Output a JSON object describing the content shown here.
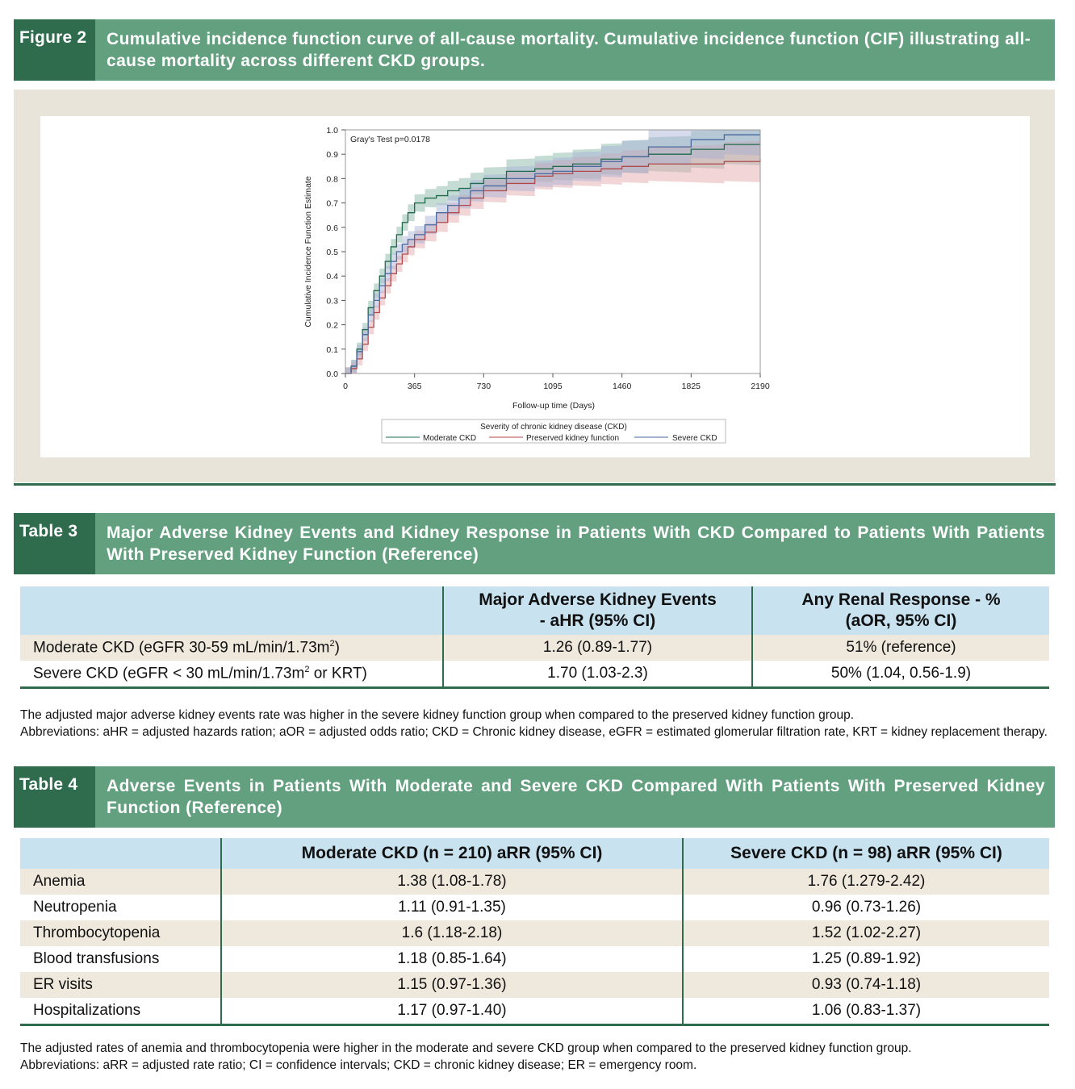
{
  "figure2": {
    "tag": "Figure 2",
    "caption": "Cumulative incidence function curve of all-cause mortality. Cumulative incidence function (CIF) illustrating all-cause mortality across different CKD groups."
  },
  "chart_data": {
    "type": "line",
    "annotation": "Gray's Test p=0.0178",
    "xlabel": "Follow-up time (Days)",
    "ylabel": "Cumulative Incidence Function Estimate",
    "xlim": [
      0,
      2190
    ],
    "ylim": [
      0,
      1.0
    ],
    "xticks": [
      0,
      365,
      730,
      1095,
      1460,
      1825,
      2190
    ],
    "yticks": [
      0.0,
      0.1,
      0.2,
      0.3,
      0.4,
      0.5,
      0.6,
      0.7,
      0.8,
      0.9,
      1.0
    ],
    "grid": false,
    "legend_title": "Severity of chronic kidney disease (CKD)",
    "legend_placement": "bottom",
    "series": [
      {
        "name": "Moderate CKD",
        "color": "#1f6b4a",
        "band_color": "#7fb2a2",
        "x": [
          0,
          30,
          60,
          90,
          120,
          150,
          180,
          210,
          240,
          270,
          300,
          330,
          365,
          420,
          480,
          540,
          600,
          660,
          730,
          850,
          1000,
          1095,
          1200,
          1350,
          1460,
          1600,
          1825,
          2000,
          2190
        ],
        "y": [
          0,
          0.03,
          0.1,
          0.18,
          0.27,
          0.34,
          0.4,
          0.46,
          0.52,
          0.57,
          0.62,
          0.66,
          0.7,
          0.72,
          0.73,
          0.75,
          0.76,
          0.78,
          0.8,
          0.83,
          0.84,
          0.85,
          0.86,
          0.88,
          0.89,
          0.9,
          0.92,
          0.94,
          0.94
        ]
      },
      {
        "name": "Preserved kidney function",
        "color": "#b04a4a",
        "band_color": "#e2a2a6",
        "x": [
          0,
          30,
          60,
          90,
          120,
          150,
          180,
          210,
          240,
          270,
          300,
          330,
          365,
          420,
          480,
          540,
          600,
          660,
          730,
          850,
          1000,
          1095,
          1200,
          1350,
          1460,
          1600,
          1825,
          2000,
          2190
        ],
        "y": [
          0,
          0.02,
          0.06,
          0.12,
          0.19,
          0.25,
          0.31,
          0.36,
          0.41,
          0.45,
          0.49,
          0.52,
          0.55,
          0.58,
          0.62,
          0.66,
          0.69,
          0.72,
          0.75,
          0.78,
          0.81,
          0.82,
          0.83,
          0.84,
          0.85,
          0.86,
          0.86,
          0.87,
          0.88
        ]
      },
      {
        "name": "Severe CKD",
        "color": "#4a6aa0",
        "band_color": "#a4b0d4",
        "x": [
          0,
          30,
          60,
          90,
          120,
          150,
          180,
          210,
          240,
          270,
          300,
          330,
          365,
          420,
          480,
          540,
          600,
          660,
          730,
          850,
          1000,
          1095,
          1200,
          1350,
          1460,
          1600,
          1825,
          2000,
          2190
        ],
        "y": [
          0,
          0.03,
          0.09,
          0.16,
          0.24,
          0.3,
          0.36,
          0.41,
          0.46,
          0.5,
          0.53,
          0.55,
          0.57,
          0.61,
          0.66,
          0.69,
          0.72,
          0.75,
          0.77,
          0.8,
          0.82,
          0.83,
          0.85,
          0.87,
          0.89,
          0.93,
          0.96,
          0.98,
          0.98
        ]
      }
    ]
  },
  "table3": {
    "tag": "Table 3",
    "caption": "Major Adverse Kidney Events and Kidney Response in Patients With CKD Compared to Patients With Patients With Preserved Kidney Function (Reference)",
    "headers": [
      "",
      "Major Adverse Kidney Events - aHR (95% CI)",
      "Any Renal Response - % (aOR, 95% CI)"
    ],
    "rows": [
      {
        "label_pre": "Moderate CKD (eGFR 30-59 mL/min/1.73m",
        "label_sup": "2",
        "label_post": ")",
        "c1": "1.26 (0.89-1.77)",
        "c2": "51% (reference)"
      },
      {
        "label_pre": "Severe CKD (eGFR < 30 mL/min/1.73m",
        "label_sup": "2",
        "label_post": " or KRT)",
        "c1": "1.70 (1.03-2.3)",
        "c2": "50% (1.04, 0.56-1.9)"
      }
    ],
    "note1": "The adjusted major adverse kidney events rate was higher in the severe kidney function group when compared to the preserved kidney function group.",
    "note2": "Abbreviations: aHR = adjusted hazards ration; aOR = adjusted odds ratio; CKD = Chronic kidney disease, eGFR = estimated glomerular filtration rate, KRT = kidney replacement therapy."
  },
  "table4": {
    "tag": "Table 4",
    "caption": "Adverse Events in Patients With Moderate and Severe CKD Compared With Patients With Preserved Kidney Function (Reference)",
    "headers": [
      "",
      "Moderate CKD (n = 210) aRR (95% CI)",
      "Severe CKD (n = 98) aRR (95% CI)"
    ],
    "rows": [
      [
        "Anemia",
        "1.38 (1.08-1.78)",
        "1.76 (1.279-2.42)"
      ],
      [
        "Neutropenia",
        "1.11 (0.91-1.35)",
        "0.96 (0.73-1.26)"
      ],
      [
        "Thrombocytopenia",
        "1.6 (1.18-2.18)",
        "1.52 (1.02-2.27)"
      ],
      [
        "Blood transfusions",
        "1.18 (0.85-1.64)",
        "1.25 (0.89-1.92)"
      ],
      [
        "ER visits",
        "1.15 (0.97-1.36)",
        "0.93 (0.74-1.18)"
      ],
      [
        "Hospitalizations",
        "1.17 (0.97-1.40)",
        "1.06 (0.83-1.37)"
      ]
    ],
    "note1": "The adjusted rates of anemia and thrombocytopenia were higher in the moderate and severe CKD group when compared to the preserved kidney function group.",
    "note2": "Abbreviations: aRR = adjusted rate ratio; CI = confidence intervals; CKD = chronic kidney disease; ER = emergency room."
  }
}
